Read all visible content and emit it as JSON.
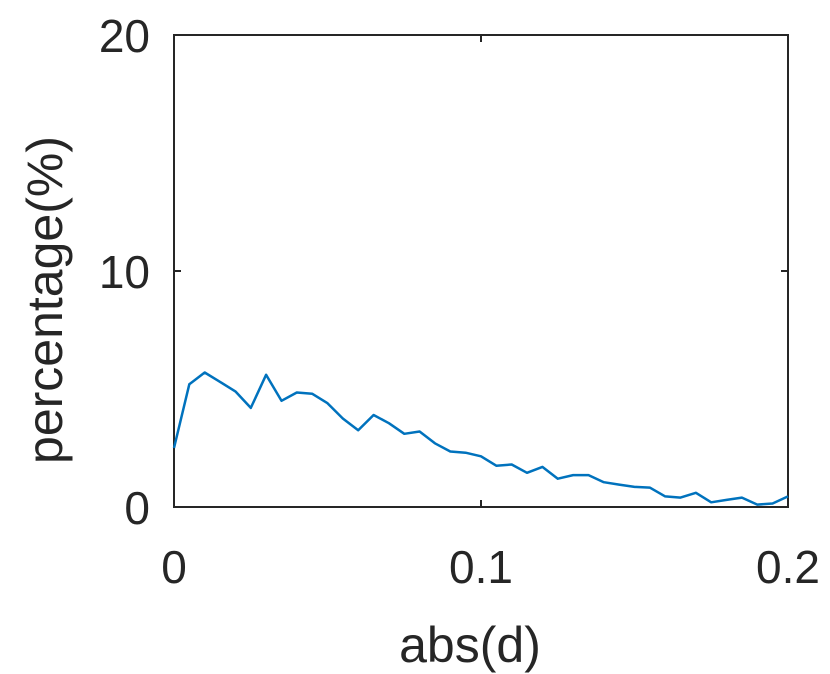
{
  "chart_data": {
    "type": "line",
    "title": "",
    "xlabel": "abs(d)",
    "ylabel": "percentage(%)",
    "xlim": [
      0,
      0.2
    ],
    "ylim": [
      0,
      20
    ],
    "x_ticks": [
      0,
      0.1,
      0.2
    ],
    "x_tick_labels": [
      "0",
      "0.1",
      "0.2"
    ],
    "y_ticks": [
      0,
      10,
      20
    ],
    "y_tick_labels": [
      "0",
      "10",
      "20"
    ],
    "grid": false,
    "box": true,
    "colors": {
      "line": "#0072BD",
      "axes": "#262626"
    },
    "series": [
      {
        "x": [
          0,
          0.005,
          0.01,
          0.015,
          0.02,
          0.025,
          0.03,
          0.035,
          0.04,
          0.045,
          0.05,
          0.055,
          0.06,
          0.065,
          0.07,
          0.075,
          0.08,
          0.085,
          0.09,
          0.095,
          0.1,
          0.105,
          0.11,
          0.115,
          0.12,
          0.125,
          0.13,
          0.135,
          0.14,
          0.145,
          0.15,
          0.155,
          0.16,
          0.165,
          0.17,
          0.175,
          0.18,
          0.185,
          0.19,
          0.195,
          0.2
        ],
        "values": [
          2.5,
          5.2,
          5.7,
          5.3,
          4.9,
          4.2,
          5.6,
          4.5,
          4.85,
          4.8,
          4.4,
          3.75,
          3.25,
          3.9,
          3.55,
          3.1,
          3.2,
          2.7,
          2.35,
          2.3,
          2.15,
          1.75,
          1.8,
          1.45,
          1.7,
          1.2,
          1.35,
          1.35,
          1.05,
          0.95,
          0.85,
          0.82,
          0.45,
          0.4,
          0.6,
          0.2,
          0.3,
          0.4,
          0.1,
          0.15,
          0.45
        ]
      }
    ]
  }
}
